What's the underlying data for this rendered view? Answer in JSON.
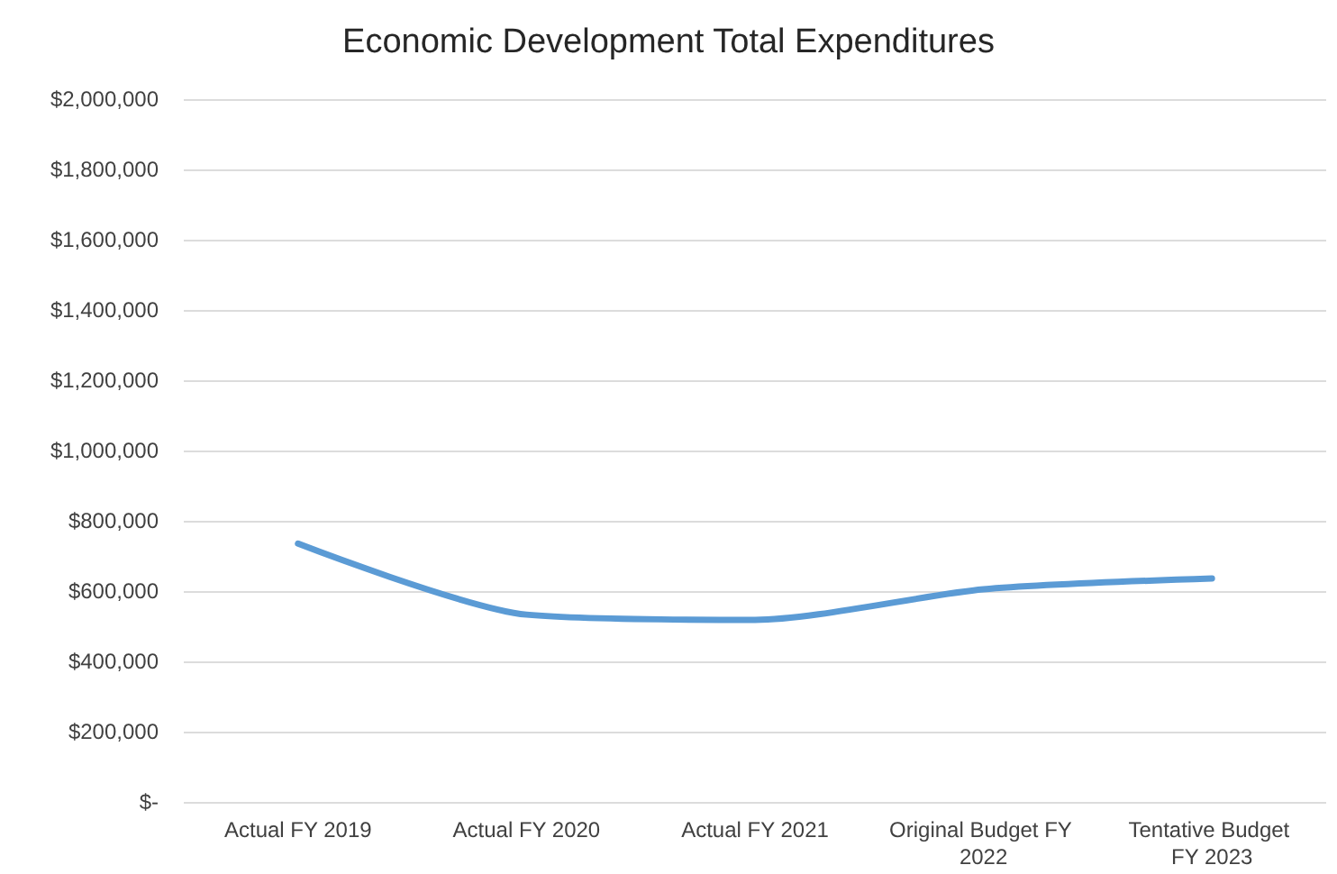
{
  "chart_data": {
    "type": "line",
    "title": "Economic Development Total Expenditures",
    "categories": [
      "Actual FY 2019",
      "Actual FY 2020",
      "Actual FY 2021",
      "Original Budget FY 2022",
      "Tentative Budget FY 2023"
    ],
    "series": [
      {
        "color": "#5b9bd5",
        "values": [
          735000,
          533000,
          518000,
          605000,
          636000
        ]
      }
    ],
    "ylim": [
      0,
      2000000
    ],
    "yticks": [
      {
        "value": 0,
        "label": "$-"
      },
      {
        "value": 200000,
        "label": "$200,000"
      },
      {
        "value": 400000,
        "label": "$400,000"
      },
      {
        "value": 600000,
        "label": "$600,000"
      },
      {
        "value": 800000,
        "label": "$800,000"
      },
      {
        "value": 1000000,
        "label": "$1,000,000"
      },
      {
        "value": 1200000,
        "label": "$1,200,000"
      },
      {
        "value": 1400000,
        "label": "$1,400,000"
      },
      {
        "value": 1600000,
        "label": "$1,600,000"
      },
      {
        "value": 1800000,
        "label": "$1,800,000"
      },
      {
        "value": 2000000,
        "label": "$2,000,000"
      }
    ],
    "grid": "y",
    "marker": "none",
    "line_style": "solid"
  }
}
